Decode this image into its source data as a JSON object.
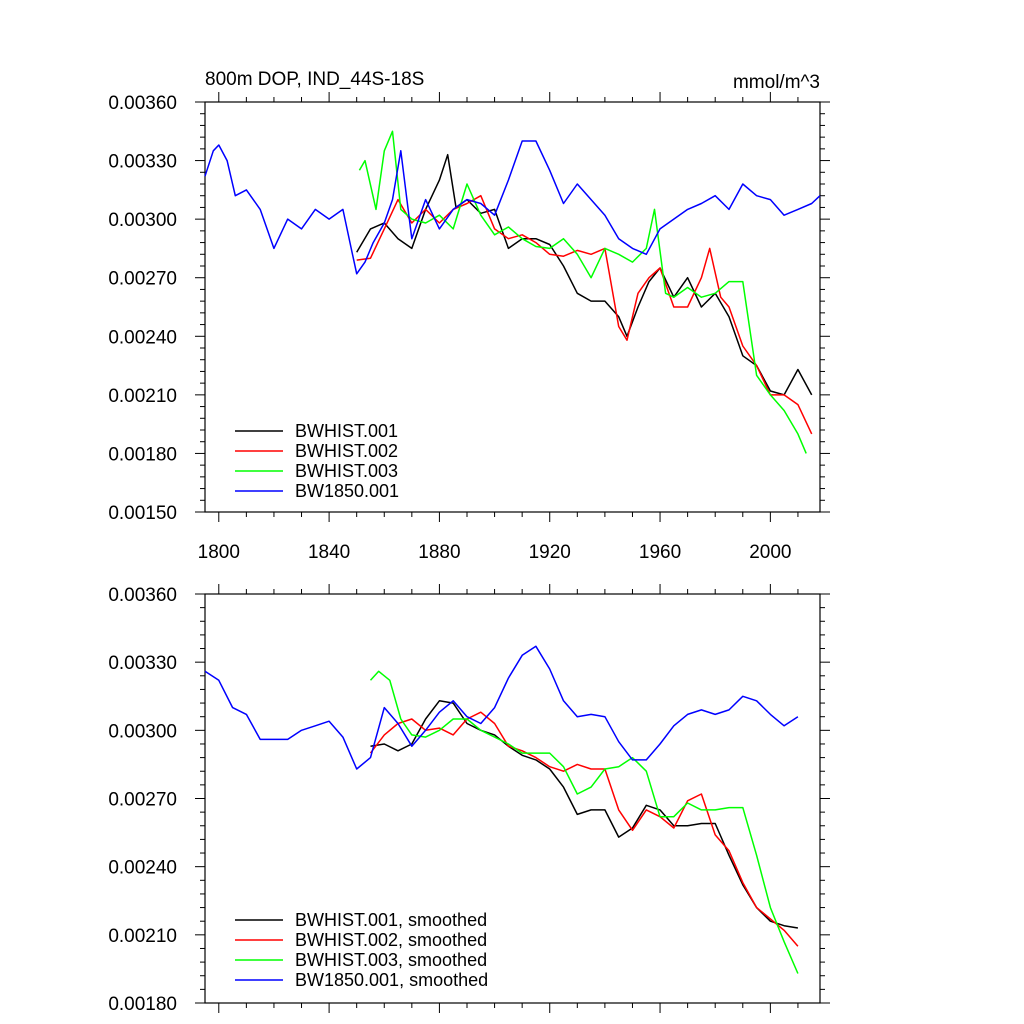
{
  "chart_data": [
    {
      "type": "line",
      "title": "800m DOP, IND_44S-18S",
      "units": "mmol/m^3",
      "xlim": [
        1795,
        2018
      ],
      "ylim": [
        0.0015,
        0.0036
      ],
      "x_ticks": [
        {
          "value": 1800,
          "label": "1800"
        },
        {
          "value": 1840,
          "label": "1840"
        },
        {
          "value": 1880,
          "label": "1880"
        },
        {
          "value": 1920,
          "label": "1920"
        },
        {
          "value": 1960,
          "label": "1960"
        },
        {
          "value": 2000,
          "label": "2000"
        }
      ],
      "y_ticks": [
        {
          "value": 0.0015,
          "label": "0.00150"
        },
        {
          "value": 0.0018,
          "label": "0.00180"
        },
        {
          "value": 0.0021,
          "label": "0.00210"
        },
        {
          "value": 0.0024,
          "label": "0.00240"
        },
        {
          "value": 0.0027,
          "label": "0.00270"
        },
        {
          "value": 0.003,
          "label": "0.00300"
        },
        {
          "value": 0.0033,
          "label": "0.00330"
        },
        {
          "value": 0.0036,
          "label": "0.00360"
        }
      ],
      "legend_position": "bottom-left",
      "grid": false,
      "series": [
        {
          "name": "BWHIST.001",
          "color": "#000000",
          "x": [
            1850,
            1855,
            1860,
            1865,
            1870,
            1875,
            1880,
            1883,
            1886,
            1890,
            1895,
            1900,
            1905,
            1910,
            1915,
            1920,
            1925,
            1930,
            1935,
            1940,
            1945,
            1948,
            1952,
            1956,
            1960,
            1965,
            1970,
            1975,
            1980,
            1985,
            1990,
            1995,
            2000,
            2005,
            2010,
            2015
          ],
          "y": [
            0.00283,
            0.00295,
            0.00298,
            0.0029,
            0.00285,
            0.00305,
            0.0032,
            0.00333,
            0.00306,
            0.0031,
            0.00303,
            0.00305,
            0.00285,
            0.0029,
            0.0029,
            0.00287,
            0.00276,
            0.00262,
            0.00258,
            0.00258,
            0.0025,
            0.0024,
            0.00255,
            0.00268,
            0.00275,
            0.0026,
            0.0027,
            0.00255,
            0.00262,
            0.0025,
            0.0023,
            0.00225,
            0.00212,
            0.0021,
            0.00223,
            0.0021
          ]
        },
        {
          "name": "BWHIST.002",
          "color": "#ff0000",
          "x": [
            1850,
            1855,
            1860,
            1865,
            1870,
            1875,
            1880,
            1885,
            1890,
            1895,
            1900,
            1905,
            1910,
            1915,
            1920,
            1925,
            1930,
            1935,
            1940,
            1945,
            1948,
            1952,
            1956,
            1960,
            1965,
            1970,
            1975,
            1978,
            1982,
            1985,
            1990,
            1995,
            2000,
            2005,
            2010,
            2015
          ],
          "y": [
            0.00279,
            0.0028,
            0.00295,
            0.0031,
            0.00298,
            0.00305,
            0.00298,
            0.00305,
            0.00308,
            0.00312,
            0.00295,
            0.0029,
            0.00292,
            0.00288,
            0.00282,
            0.00281,
            0.00284,
            0.00282,
            0.00285,
            0.00245,
            0.00238,
            0.00262,
            0.0027,
            0.00275,
            0.00255,
            0.00255,
            0.0027,
            0.00285,
            0.0026,
            0.00255,
            0.00235,
            0.00225,
            0.0021,
            0.0021,
            0.00205,
            0.0019
          ]
        },
        {
          "name": "BWHIST.003",
          "color": "#00ff00",
          "x": [
            1851,
            1853,
            1857,
            1860,
            1863,
            1866,
            1870,
            1875,
            1880,
            1885,
            1890,
            1895,
            1900,
            1905,
            1910,
            1915,
            1920,
            1925,
            1930,
            1935,
            1940,
            1945,
            1950,
            1955,
            1958,
            1962,
            1965,
            1970,
            1975,
            1980,
            1985,
            1990,
            1995,
            2000,
            2005,
            2010,
            2013
          ],
          "y": [
            0.00325,
            0.0033,
            0.00305,
            0.00335,
            0.00345,
            0.00305,
            0.003,
            0.00298,
            0.00302,
            0.00295,
            0.00318,
            0.00302,
            0.00292,
            0.00296,
            0.0029,
            0.00286,
            0.00285,
            0.0029,
            0.00282,
            0.0027,
            0.00285,
            0.00282,
            0.00278,
            0.00285,
            0.00305,
            0.00262,
            0.0026,
            0.00265,
            0.0026,
            0.00262,
            0.00268,
            0.00268,
            0.0022,
            0.0021,
            0.00202,
            0.0019,
            0.0018
          ]
        },
        {
          "name": "BW1850.001",
          "color": "#0000ff",
          "x": [
            1795,
            1798,
            1800,
            1803,
            1806,
            1810,
            1815,
            1820,
            1825,
            1830,
            1835,
            1840,
            1845,
            1848,
            1850,
            1853,
            1856,
            1860,
            1863,
            1866,
            1870,
            1875,
            1880,
            1885,
            1890,
            1895,
            1900,
            1905,
            1910,
            1915,
            1920,
            1925,
            1930,
            1935,
            1940,
            1945,
            1950,
            1955,
            1960,
            1965,
            1970,
            1975,
            1980,
            1985,
            1990,
            1995,
            2000,
            2005,
            2010,
            2015,
            2018
          ],
          "y": [
            0.00322,
            0.00335,
            0.00338,
            0.0033,
            0.00312,
            0.00315,
            0.00305,
            0.00285,
            0.003,
            0.00295,
            0.00305,
            0.003,
            0.00305,
            0.00285,
            0.00272,
            0.00278,
            0.00288,
            0.00298,
            0.0031,
            0.00335,
            0.0029,
            0.0031,
            0.00295,
            0.00305,
            0.0031,
            0.00308,
            0.00302,
            0.0032,
            0.0034,
            0.0034,
            0.00325,
            0.00308,
            0.00318,
            0.0031,
            0.00302,
            0.0029,
            0.00285,
            0.00282,
            0.00295,
            0.003,
            0.00305,
            0.00308,
            0.00312,
            0.00305,
            0.00318,
            0.00312,
            0.0031,
            0.00302,
            0.00305,
            0.00308,
            0.00312
          ]
        }
      ]
    },
    {
      "type": "line",
      "xlim": [
        1795,
        2018
      ],
      "ylim": [
        0.0018,
        0.0036
      ],
      "x_ticks": [
        {
          "value": 1800,
          "label": ""
        },
        {
          "value": 1840,
          "label": ""
        },
        {
          "value": 1880,
          "label": ""
        },
        {
          "value": 1920,
          "label": ""
        },
        {
          "value": 1960,
          "label": ""
        },
        {
          "value": 2000,
          "label": ""
        }
      ],
      "y_ticks": [
        {
          "value": 0.0018,
          "label": "0.00180"
        },
        {
          "value": 0.0021,
          "label": "0.00210"
        },
        {
          "value": 0.0024,
          "label": "0.00240"
        },
        {
          "value": 0.0027,
          "label": "0.00270"
        },
        {
          "value": 0.003,
          "label": "0.00300"
        },
        {
          "value": 0.0033,
          "label": "0.00330"
        },
        {
          "value": 0.0036,
          "label": "0.00360"
        }
      ],
      "legend_position": "bottom-left",
      "grid": false,
      "series": [
        {
          "name": "BWHIST.001, smoothed",
          "color": "#000000",
          "x": [
            1855,
            1860,
            1865,
            1870,
            1875,
            1880,
            1885,
            1890,
            1895,
            1900,
            1905,
            1910,
            1915,
            1920,
            1925,
            1930,
            1935,
            1940,
            1945,
            1950,
            1955,
            1960,
            1965,
            1970,
            1975,
            1980,
            1985,
            1990,
            1995,
            2000,
            2005,
            2010
          ],
          "y": [
            0.00293,
            0.00294,
            0.00291,
            0.00294,
            0.00305,
            0.00313,
            0.00312,
            0.00303,
            0.003,
            0.00298,
            0.00293,
            0.00289,
            0.00287,
            0.00283,
            0.00275,
            0.00263,
            0.00265,
            0.00265,
            0.00253,
            0.00257,
            0.00267,
            0.00265,
            0.00258,
            0.00258,
            0.00259,
            0.00259,
            0.00245,
            0.00232,
            0.00222,
            0.00216,
            0.00214,
            0.00213
          ]
        },
        {
          "name": "BWHIST.002, smoothed",
          "color": "#ff0000",
          "x": [
            1855,
            1860,
            1865,
            1870,
            1875,
            1880,
            1885,
            1890,
            1895,
            1900,
            1905,
            1910,
            1915,
            1920,
            1925,
            1930,
            1935,
            1940,
            1945,
            1950,
            1955,
            1960,
            1965,
            1970,
            1975,
            1980,
            1985,
            1990,
            1995,
            2000,
            2005,
            2010
          ],
          "y": [
            0.0029,
            0.00298,
            0.00303,
            0.00305,
            0.003,
            0.00301,
            0.00298,
            0.00305,
            0.00308,
            0.00303,
            0.00293,
            0.00291,
            0.00288,
            0.00284,
            0.00282,
            0.00285,
            0.00283,
            0.00283,
            0.00265,
            0.00256,
            0.00265,
            0.00262,
            0.00257,
            0.00269,
            0.00272,
            0.00254,
            0.00247,
            0.00233,
            0.00222,
            0.00217,
            0.00212,
            0.00205
          ]
        },
        {
          "name": "BWHIST.003, smoothed",
          "color": "#00ff00",
          "x": [
            1855,
            1858,
            1862,
            1866,
            1870,
            1875,
            1880,
            1885,
            1890,
            1895,
            1900,
            1905,
            1910,
            1915,
            1920,
            1925,
            1930,
            1935,
            1940,
            1945,
            1950,
            1955,
            1960,
            1965,
            1970,
            1975,
            1980,
            1985,
            1990,
            1995,
            2000,
            2005,
            2010
          ],
          "y": [
            0.00322,
            0.00326,
            0.00322,
            0.00305,
            0.00298,
            0.00297,
            0.003,
            0.00305,
            0.00305,
            0.003,
            0.00297,
            0.00294,
            0.0029,
            0.0029,
            0.0029,
            0.00284,
            0.00272,
            0.00275,
            0.00283,
            0.00284,
            0.00288,
            0.00282,
            0.00262,
            0.00262,
            0.00268,
            0.00265,
            0.00265,
            0.00266,
            0.00266,
            0.00245,
            0.00222,
            0.00207,
            0.00193
          ]
        },
        {
          "name": "BW1850.001, smoothed",
          "color": "#0000ff",
          "x": [
            1795,
            1800,
            1805,
            1810,
            1815,
            1820,
            1825,
            1830,
            1835,
            1840,
            1845,
            1850,
            1855,
            1860,
            1865,
            1870,
            1875,
            1880,
            1885,
            1890,
            1895,
            1900,
            1905,
            1910,
            1915,
            1920,
            1925,
            1930,
            1935,
            1940,
            1945,
            1950,
            1955,
            1960,
            1965,
            1970,
            1975,
            1980,
            1985,
            1990,
            1995,
            2000,
            2005,
            2010
          ],
          "y": [
            0.00326,
            0.00322,
            0.0031,
            0.00307,
            0.00296,
            0.00296,
            0.00296,
            0.003,
            0.00302,
            0.00304,
            0.00297,
            0.00283,
            0.00288,
            0.0031,
            0.00303,
            0.00293,
            0.003,
            0.00308,
            0.00313,
            0.00306,
            0.00303,
            0.0031,
            0.00323,
            0.00333,
            0.00337,
            0.00327,
            0.00313,
            0.00306,
            0.00307,
            0.00306,
            0.00295,
            0.00287,
            0.00287,
            0.00294,
            0.00302,
            0.00307,
            0.00309,
            0.00307,
            0.00309,
            0.00315,
            0.00313,
            0.00307,
            0.00302,
            0.00306
          ]
        }
      ]
    }
  ]
}
